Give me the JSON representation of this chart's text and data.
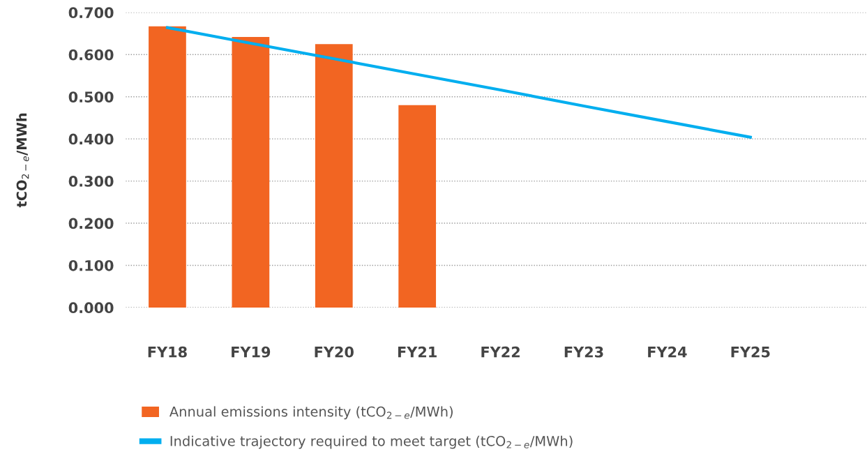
{
  "chart_data": {
    "type": "bar",
    "ylabel": "tCO$_{2−e}$/MWh",
    "categories": [
      "FY18",
      "FY19",
      "FY20",
      "FY21",
      "FY22",
      "FY23",
      "FY24",
      "FY25"
    ],
    "series": [
      {
        "name": "Annual emissions intensity (tCO$_{2−e}$/MWh)",
        "color": "#f26522",
        "values": [
          0.667,
          0.642,
          0.625,
          0.48,
          null,
          null,
          null,
          null
        ]
      },
      {
        "name": "Indicative trajectory required to meet target (tCO$_{2−e}$/MWh)",
        "type": "line",
        "color": "#00aeef",
        "values": [
          0.664,
          0.627,
          0.59,
          0.553,
          0.516,
          0.478,
          0.441,
          0.404
        ]
      }
    ],
    "ylim": [
      0,
      0.7
    ],
    "yticks": [
      {
        "value": 0,
        "label": "0.000"
      },
      {
        "value": 0.1,
        "label": "0.100"
      },
      {
        "value": 0.2,
        "label": "0.200"
      },
      {
        "value": 0.3,
        "label": "0.300"
      },
      {
        "value": 0.4,
        "label": "0.400"
      },
      {
        "value": 0.5,
        "label": "0.500"
      },
      {
        "value": 0.6,
        "label": "0.600"
      },
      {
        "value": 0.7,
        "label": "0.700"
      }
    ],
    "grid": "y",
    "legend": "bottom left",
    "line_style": "solid",
    "marker": "none"
  }
}
